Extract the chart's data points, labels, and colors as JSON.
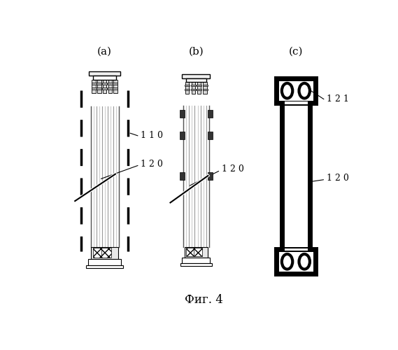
{
  "bg_color": "#ffffff",
  "title_caption": "Фиг. 4",
  "labels": {
    "a": "(a)",
    "b": "(b)",
    "c": "(c)"
  },
  "ann_110": "1 1 0",
  "ann_120": "1 2 0",
  "ann_121": "1 2 1",
  "fig_width": 5.69,
  "fig_height": 5.0,
  "dpi": 100
}
